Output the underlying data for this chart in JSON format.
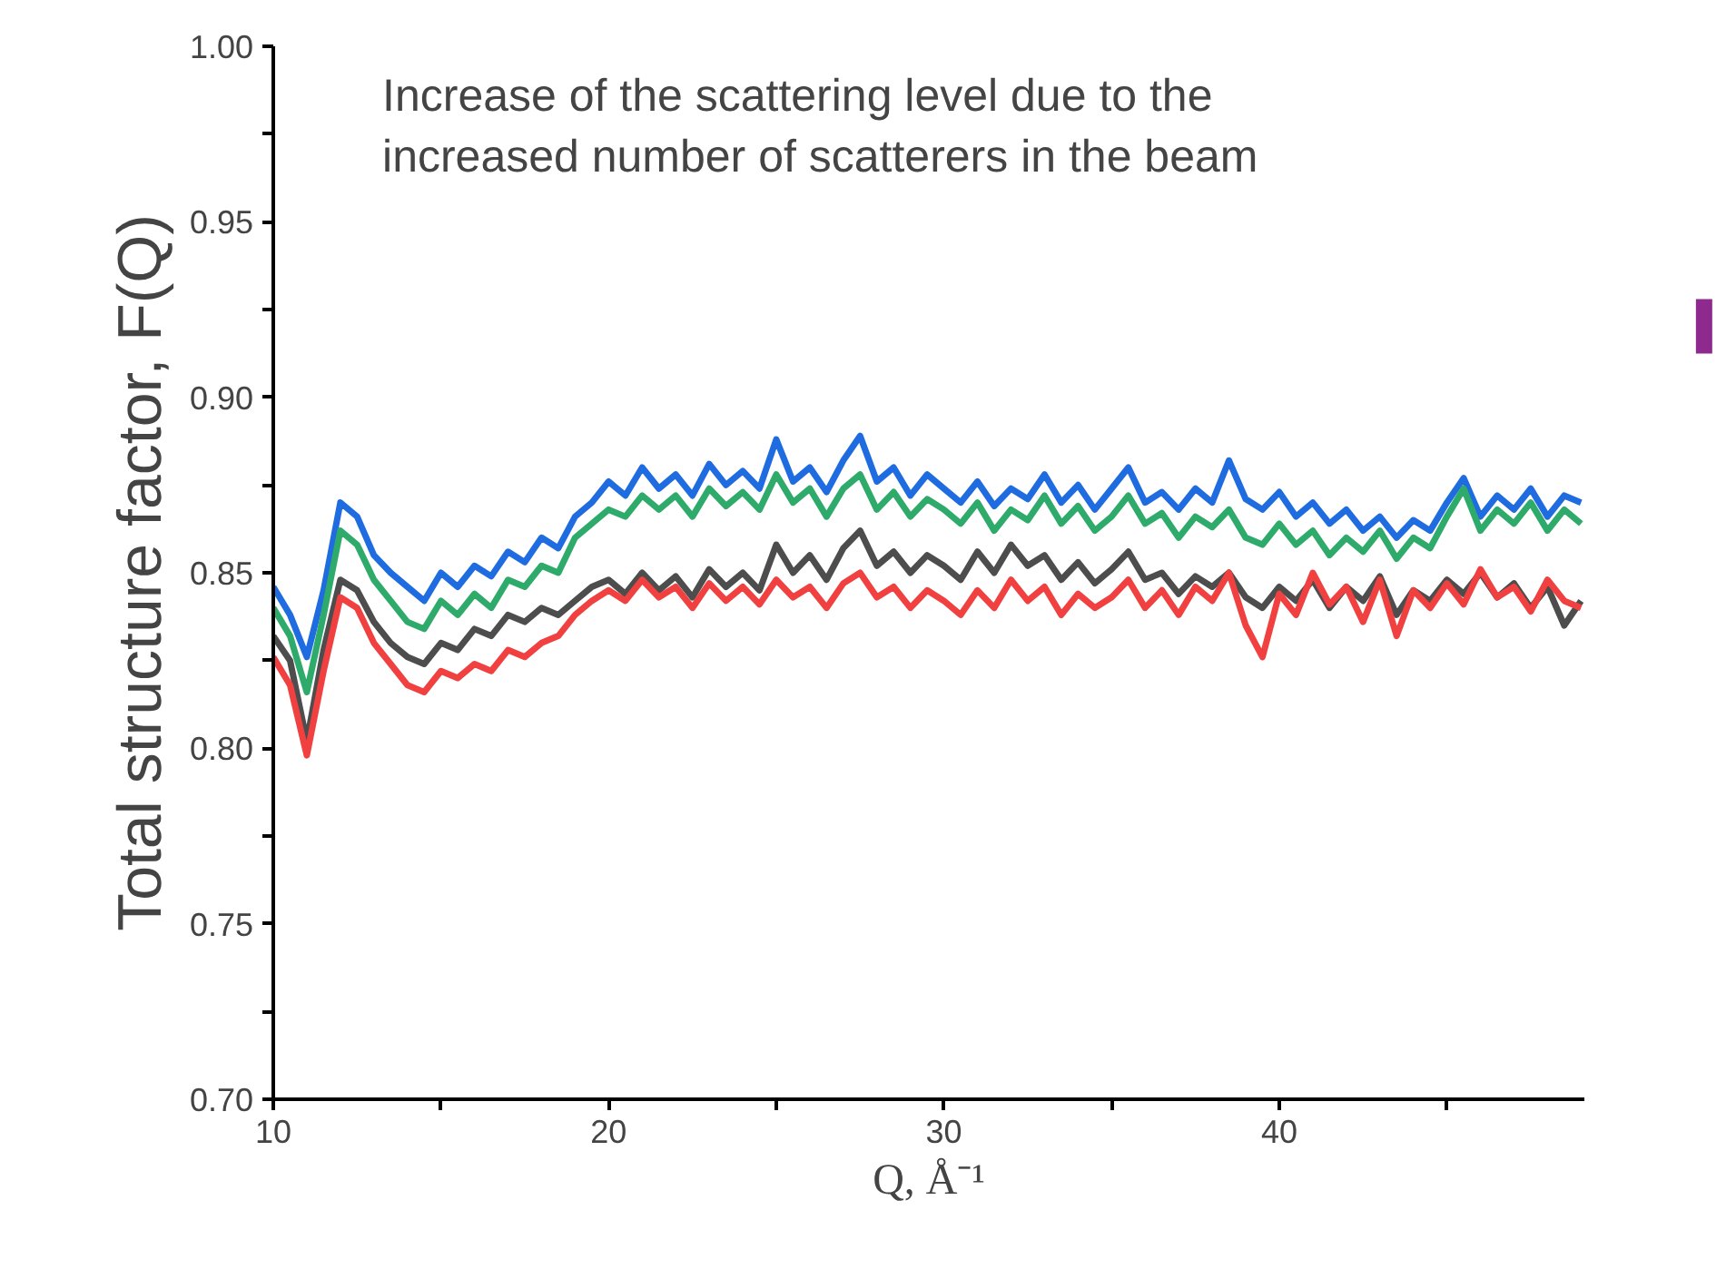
{
  "chart_data": {
    "type": "line",
    "xlabel": "Q, Å⁻¹",
    "ylabel": "Total structure factor, F(Q)",
    "annotations": [
      "Increase of the scattering level due to the\nincreased number of scatterers in the beam"
    ],
    "xlim": [
      10,
      49.1
    ],
    "ylim": [
      0.7,
      1.0
    ],
    "xticks": [
      10,
      {
        "value": 15,
        "label": null
      },
      20,
      {
        "value": 25,
        "label": null
      },
      30,
      {
        "value": 35,
        "label": null
      },
      40,
      {
        "value": 45,
        "label": null
      }
    ],
    "yticks": [
      {
        "value": 0.7,
        "label": "0.70"
      },
      {
        "value": 0.725,
        "label": null
      },
      {
        "value": 0.75,
        "label": "0.75"
      },
      {
        "value": 0.775,
        "label": null
      },
      {
        "value": 0.8,
        "label": "0.80"
      },
      {
        "value": 0.825,
        "label": null
      },
      {
        "value": 0.85,
        "label": "0.85"
      },
      {
        "value": 0.875,
        "label": null
      },
      {
        "value": 0.9,
        "label": "0.90"
      },
      {
        "value": 0.925,
        "label": null
      },
      {
        "value": 0.95,
        "label": "0.95"
      },
      {
        "value": 0.975,
        "label": null
      },
      {
        "value": 1.0,
        "label": "1.00"
      }
    ],
    "grid": false,
    "line_style": "solid",
    "marker": "none",
    "x": [
      10,
      10.5,
      11,
      11.5,
      12,
      12.5,
      13,
      13.5,
      14,
      14.5,
      15,
      15.5,
      16,
      16.5,
      17,
      17.5,
      18,
      18.5,
      19,
      19.5,
      20,
      20.5,
      21,
      21.5,
      22,
      22.5,
      23,
      23.5,
      24,
      24.5,
      25,
      25.5,
      26,
      26.5,
      27,
      27.5,
      28,
      28.5,
      29,
      29.5,
      30,
      30.5,
      31,
      31.5,
      32,
      32.5,
      33,
      33.5,
      34,
      34.5,
      35,
      35.5,
      36,
      36.5,
      37,
      37.5,
      38,
      38.5,
      39,
      39.5,
      40,
      40.5,
      41,
      41.5,
      42,
      42.5,
      43,
      43.5,
      44,
      44.5,
      45,
      45.5,
      46,
      46.5,
      47,
      47.5,
      48,
      48.5,
      49
    ],
    "series": [
      {
        "color": "#1f6be0",
        "values": [
          0.846,
          0.838,
          0.826,
          0.845,
          0.87,
          0.866,
          0.855,
          0.85,
          0.846,
          0.842,
          0.85,
          0.846,
          0.852,
          0.849,
          0.856,
          0.853,
          0.86,
          0.857,
          0.866,
          0.87,
          0.876,
          0.872,
          0.88,
          0.874,
          0.878,
          0.872,
          0.881,
          0.875,
          0.879,
          0.874,
          0.888,
          0.876,
          0.88,
          0.873,
          0.882,
          0.889,
          0.876,
          0.88,
          0.872,
          0.878,
          0.874,
          0.87,
          0.876,
          0.869,
          0.874,
          0.871,
          0.878,
          0.87,
          0.875,
          0.868,
          0.874,
          0.88,
          0.87,
          0.873,
          0.868,
          0.874,
          0.87,
          0.882,
          0.871,
          0.868,
          0.873,
          0.866,
          0.87,
          0.864,
          0.868,
          0.862,
          0.866,
          0.86,
          0.865,
          0.862,
          0.87,
          0.877,
          0.866,
          0.872,
          0.868,
          0.874,
          0.866,
          0.872,
          0.87
        ]
      },
      {
        "color": "#2eaa6a",
        "values": [
          0.84,
          0.832,
          0.816,
          0.838,
          0.862,
          0.858,
          0.848,
          0.842,
          0.836,
          0.834,
          0.842,
          0.838,
          0.844,
          0.84,
          0.848,
          0.846,
          0.852,
          0.85,
          0.86,
          0.864,
          0.868,
          0.866,
          0.872,
          0.868,
          0.872,
          0.866,
          0.874,
          0.869,
          0.873,
          0.868,
          0.878,
          0.87,
          0.874,
          0.866,
          0.874,
          0.878,
          0.868,
          0.873,
          0.866,
          0.871,
          0.868,
          0.864,
          0.87,
          0.862,
          0.868,
          0.865,
          0.872,
          0.864,
          0.869,
          0.862,
          0.866,
          0.872,
          0.864,
          0.867,
          0.86,
          0.866,
          0.863,
          0.868,
          0.86,
          0.858,
          0.864,
          0.858,
          0.862,
          0.855,
          0.86,
          0.856,
          0.862,
          0.854,
          0.86,
          0.857,
          0.866,
          0.874,
          0.862,
          0.868,
          0.864,
          0.87,
          0.862,
          0.868,
          0.864
        ]
      },
      {
        "color": "#4d4d4d",
        "values": [
          0.832,
          0.825,
          0.802,
          0.828,
          0.848,
          0.845,
          0.836,
          0.83,
          0.826,
          0.824,
          0.83,
          0.828,
          0.834,
          0.832,
          0.838,
          0.836,
          0.84,
          0.838,
          0.842,
          0.846,
          0.848,
          0.844,
          0.85,
          0.845,
          0.849,
          0.843,
          0.851,
          0.846,
          0.85,
          0.845,
          0.858,
          0.85,
          0.855,
          0.848,
          0.857,
          0.862,
          0.852,
          0.856,
          0.85,
          0.855,
          0.852,
          0.848,
          0.856,
          0.85,
          0.858,
          0.852,
          0.855,
          0.848,
          0.853,
          0.847,
          0.851,
          0.856,
          0.848,
          0.85,
          0.844,
          0.849,
          0.846,
          0.85,
          0.843,
          0.84,
          0.846,
          0.842,
          0.848,
          0.84,
          0.846,
          0.842,
          0.849,
          0.838,
          0.845,
          0.842,
          0.848,
          0.844,
          0.85,
          0.843,
          0.847,
          0.84,
          0.846,
          0.835,
          0.842
        ]
      },
      {
        "color": "#f04040",
        "values": [
          0.826,
          0.818,
          0.798,
          0.822,
          0.843,
          0.84,
          0.83,
          0.824,
          0.818,
          0.816,
          0.822,
          0.82,
          0.824,
          0.822,
          0.828,
          0.826,
          0.83,
          0.832,
          0.838,
          0.842,
          0.845,
          0.842,
          0.848,
          0.843,
          0.846,
          0.84,
          0.847,
          0.842,
          0.846,
          0.841,
          0.848,
          0.843,
          0.846,
          0.84,
          0.847,
          0.85,
          0.843,
          0.846,
          0.84,
          0.845,
          0.842,
          0.838,
          0.845,
          0.84,
          0.848,
          0.842,
          0.846,
          0.838,
          0.844,
          0.84,
          0.843,
          0.848,
          0.84,
          0.845,
          0.838,
          0.846,
          0.842,
          0.85,
          0.835,
          0.826,
          0.844,
          0.838,
          0.85,
          0.841,
          0.846,
          0.836,
          0.848,
          0.832,
          0.845,
          0.84,
          0.847,
          0.841,
          0.851,
          0.843,
          0.846,
          0.839,
          0.848,
          0.842,
          0.84
        ]
      }
    ]
  }
}
